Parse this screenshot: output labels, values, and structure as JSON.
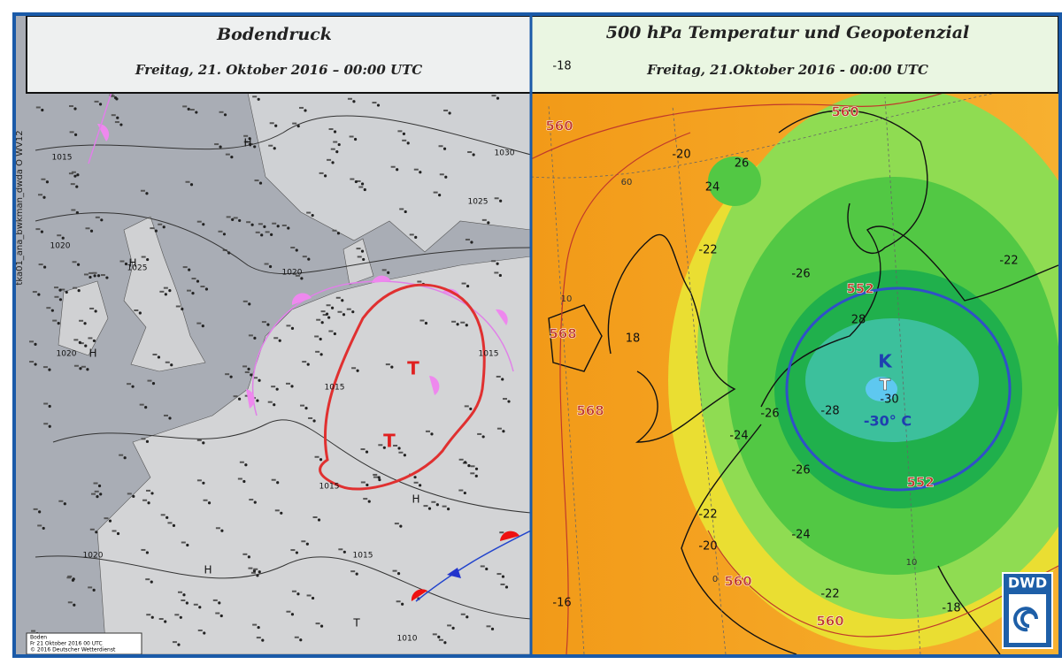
{
  "left_panel": {
    "title": "Bodendruck",
    "subtitle": "Freitag, 21. Oktober 2016 – 00:00 UTC",
    "side_label": "tka01_ana_bwkman_dwda O WV12",
    "footer": [
      "Boden",
      "Fr 21 Oktober 2016 00 UTC",
      "© 2016 Deutscher Wetterdienst"
    ],
    "isobar_labels": [
      "1015",
      "1030",
      "1025",
      "1020",
      "1025",
      "1020",
      "1020",
      "1015",
      "1015",
      "1015",
      "1020",
      "1015",
      "1010"
    ],
    "pressure_centers": [
      "H",
      "H",
      "H",
      "H",
      "T",
      "T",
      "H",
      "T"
    ]
  },
  "right_panel": {
    "title": "500 hPa Temperatur und Geopotenzial",
    "subtitle": "Freitag, 21.Oktober 2016 - 00:00 UTC",
    "geopotential_labels": [
      "560",
      "560",
      "568",
      "568",
      "552",
      "552",
      "560",
      "560"
    ],
    "temperature_labels": [
      "-18",
      "-20",
      "26",
      "24",
      "-22",
      "-26",
      "18",
      "28",
      "-30",
      "-26",
      "-28",
      "-24",
      "-26",
      "-22",
      "-24",
      "-20",
      "-22",
      "-18",
      "-16",
      "-22"
    ],
    "grid_labels": [
      "60",
      "10",
      "0",
      "10"
    ],
    "cold_center": {
      "symbol": "K",
      "trough": "T",
      "temperature": "-30° C"
    },
    "logo": "DWD"
  }
}
